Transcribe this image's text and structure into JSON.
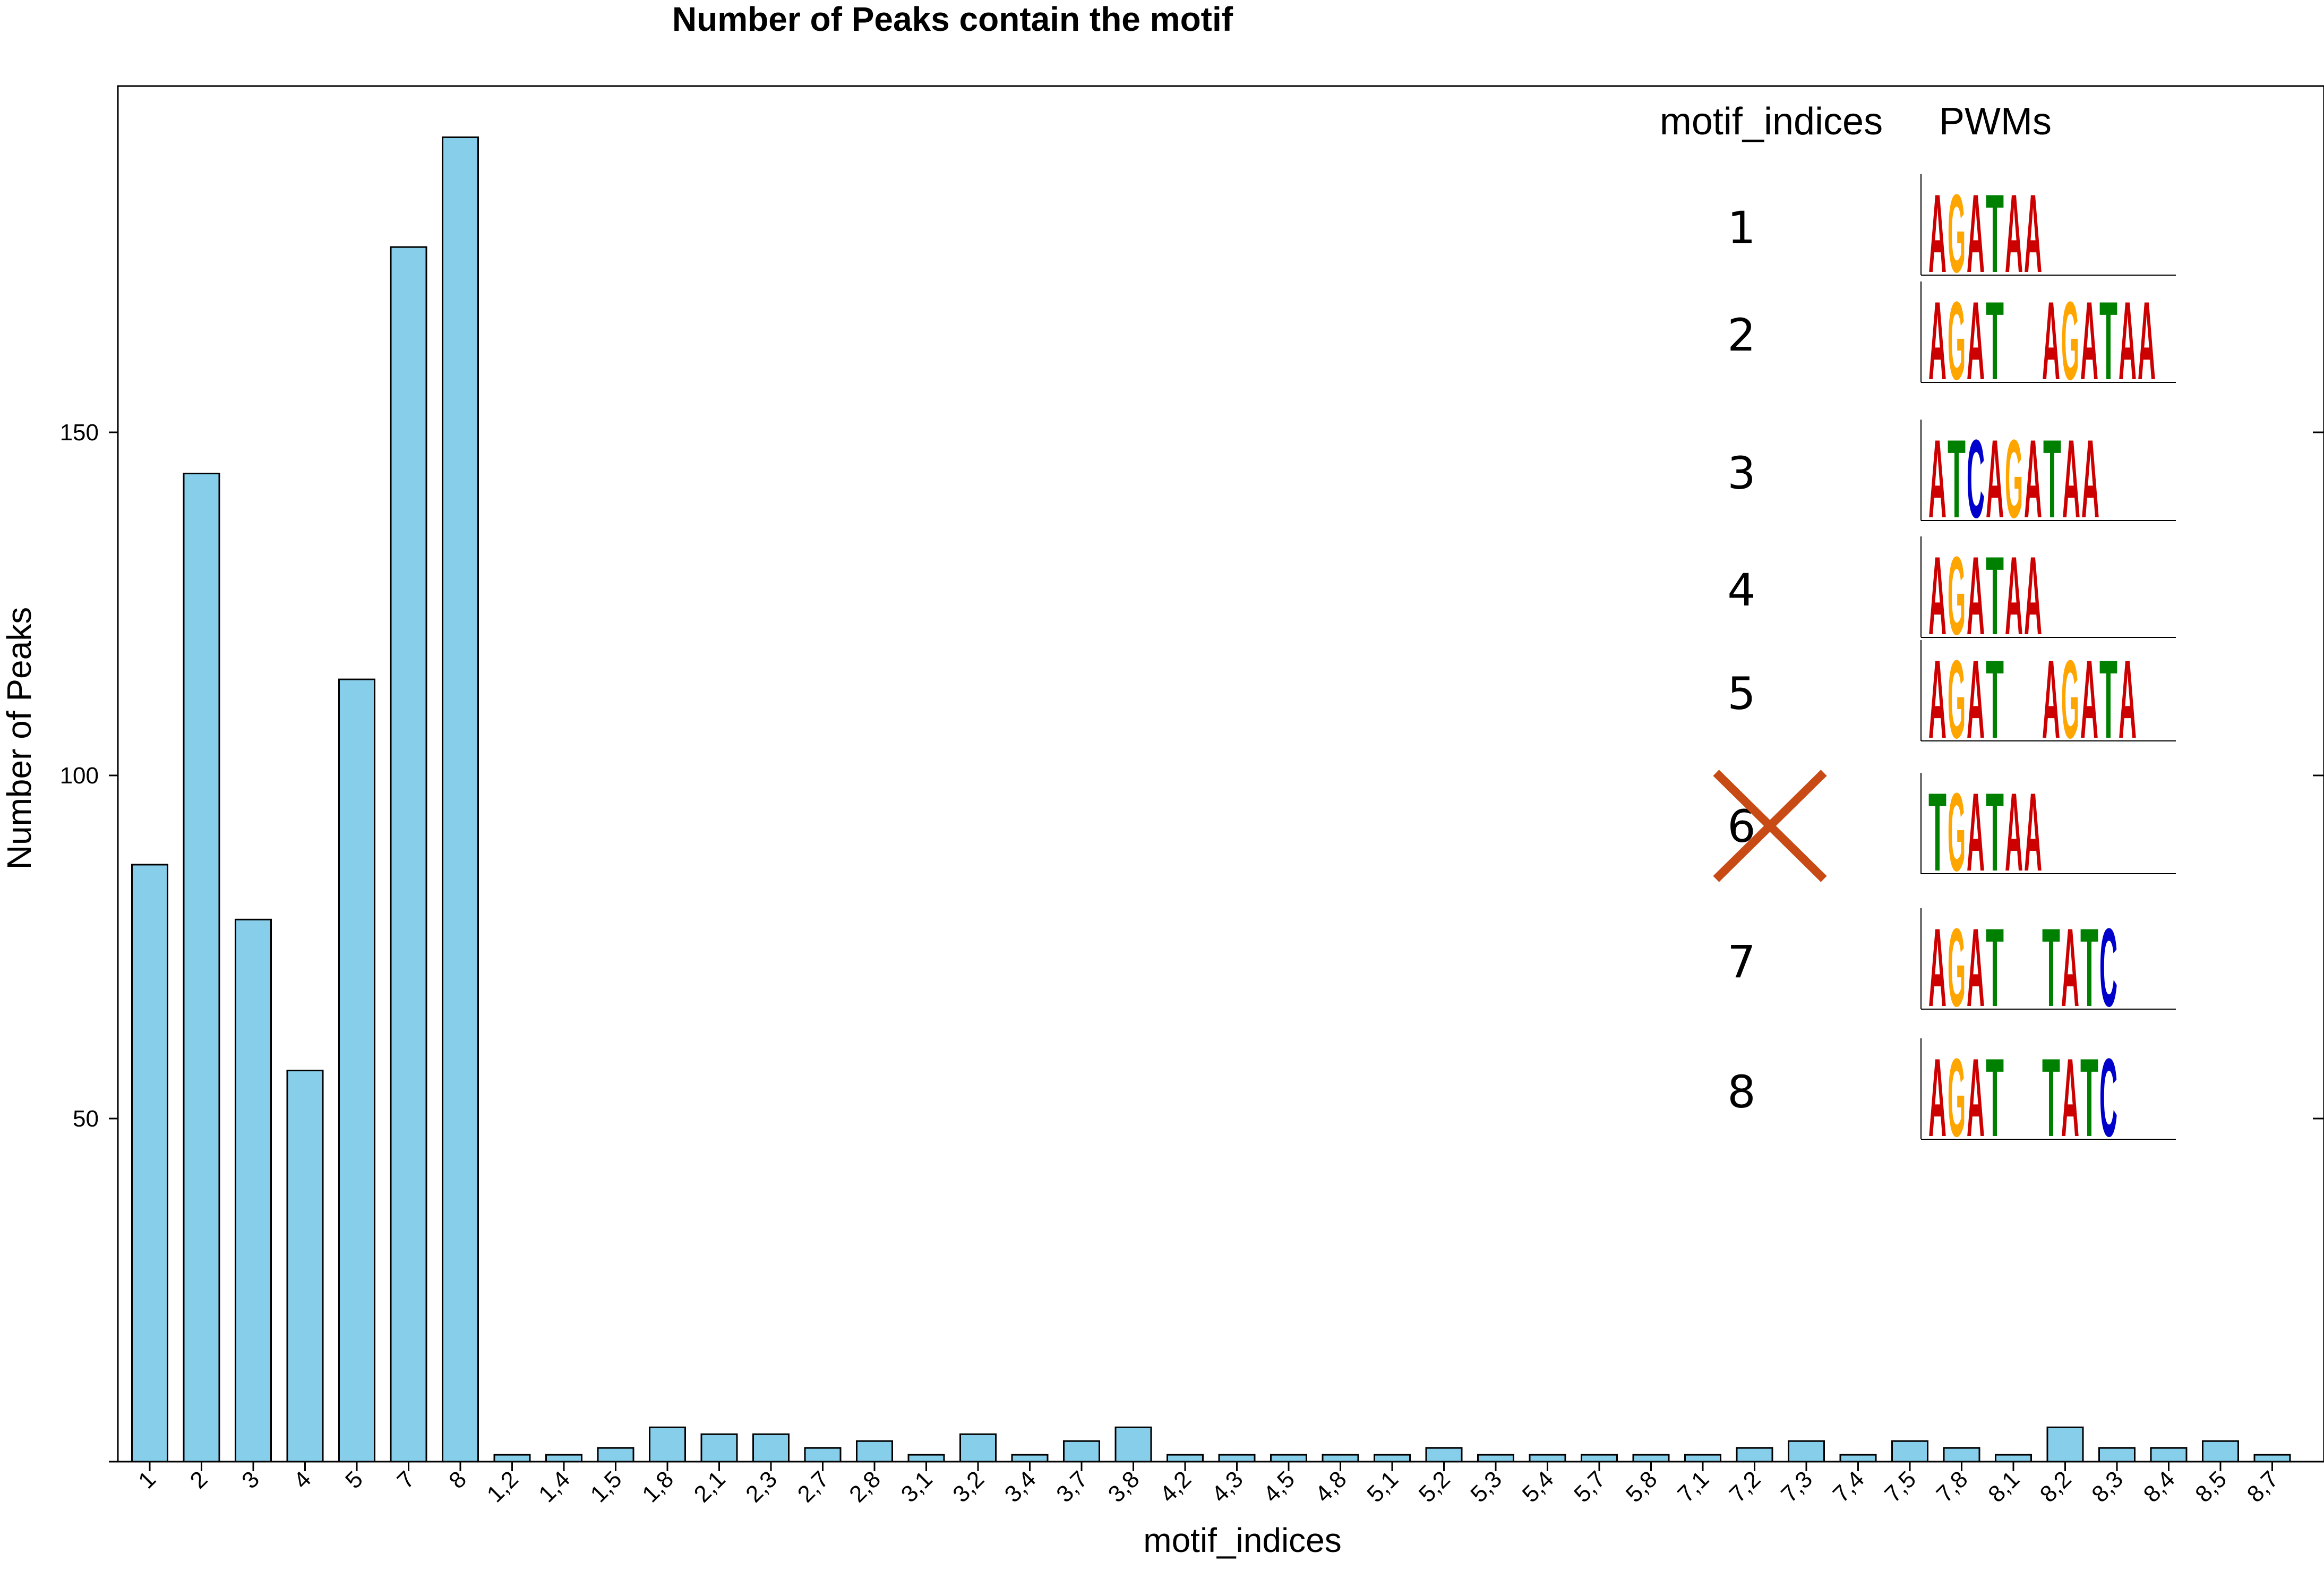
{
  "chart_data": {
    "type": "bar",
    "title": "Number of Peaks contain the motif",
    "xlabel": "motif_indices",
    "ylabel": "Number of Peaks",
    "ylim": [
      0,
      200
    ],
    "yticks": [
      50,
      100,
      150
    ],
    "grid": false,
    "bar_color": "#87CEEB",
    "bar_edge_color": "#000000",
    "categories": [
      "1",
      "2",
      "3",
      "4",
      "5",
      "7",
      "8",
      "1,2",
      "1,4",
      "1,5",
      "1,8",
      "2,1",
      "2,3",
      "2,7",
      "2,8",
      "3,1",
      "3,2",
      "3,4",
      "3,7",
      "3,8",
      "4,2",
      "4,3",
      "4,5",
      "4,8",
      "5,1",
      "5,2",
      "5,3",
      "5,4",
      "5,7",
      "5,8",
      "7,1",
      "7,2",
      "7,3",
      "7,4",
      "7,5",
      "7,8",
      "8,1",
      "8,2",
      "8,3",
      "8,4",
      "8,5",
      "8,7"
    ],
    "values": [
      87,
      144,
      79,
      57,
      114,
      177,
      193,
      1,
      1,
      2,
      5,
      4,
      4,
      2,
      3,
      1,
      4,
      1,
      3,
      5,
      1,
      1,
      1,
      1,
      1,
      2,
      1,
      1,
      1,
      1,
      1,
      2,
      3,
      1,
      3,
      2,
      1,
      5,
      2,
      2,
      3,
      1
    ]
  },
  "legend": {
    "position": "top-right",
    "col1_header": "motif_indices",
    "col2_header": "PWMs",
    "entries": [
      {
        "index": "1",
        "motif": "AGATAA",
        "crossed": false
      },
      {
        "index": "2",
        "motif": "AGAT AGATAA",
        "crossed": false
      },
      {
        "index": "3",
        "motif": "ATCAGATAA",
        "crossed": false
      },
      {
        "index": "4",
        "motif": "AGATAA",
        "crossed": false
      },
      {
        "index": "5",
        "motif": "AGAT AGATA",
        "crossed": false
      },
      {
        "index": "6",
        "motif": "TGATAA",
        "crossed": true
      },
      {
        "index": "7",
        "motif": "AGAT TATC",
        "crossed": false
      },
      {
        "index": "8",
        "motif": "AGAT TATC",
        "crossed": false
      }
    ],
    "cross_color": "#C84B16"
  },
  "logo_colors": {
    "A": "#CC0000",
    "C": "#0000CC",
    "G": "#FFA500",
    "T": "#008000"
  }
}
